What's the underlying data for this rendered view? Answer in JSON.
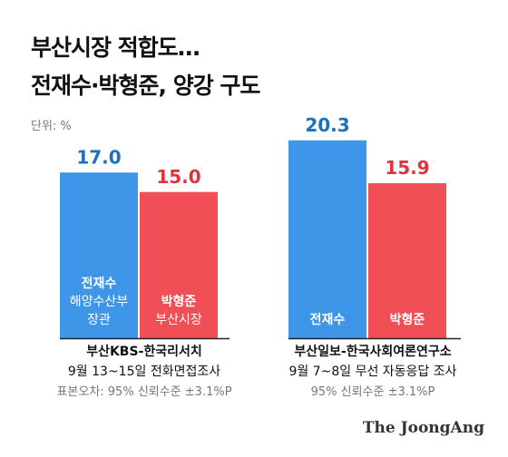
{
  "title": {
    "line1": "부산시장 적합도…",
    "line2": "전재수·박형준, 양강 구도"
  },
  "unit_label": "단위: %",
  "brand": "The JoongAng",
  "colors": {
    "candidate_a": "#3f95e7",
    "candidate_b": "#f04f56",
    "value_a": "#1e6fc0",
    "value_b": "#e0353e",
    "caption": "#111111",
    "caption_muted": "#777777"
  },
  "chart_data": [
    {
      "type": "bar",
      "categories": [
        "전재수",
        "박형준"
      ],
      "values": [
        17.0,
        15.0
      ],
      "value_labels": [
        "17.0",
        "15.0"
      ],
      "bar_labels": [
        [
          "전재수",
          "해양수산부",
          "장관"
        ],
        [
          "박형준",
          "부산시장"
        ]
      ],
      "ylim": [
        0,
        25
      ],
      "caption": [
        "부산KBS-한국리서치",
        "9월 13~15일 전화면접조사",
        "표본오차: 95% 신뢰수준 ±3.1%P"
      ]
    },
    {
      "type": "bar",
      "categories": [
        "전재수",
        "박형준"
      ],
      "values": [
        20.3,
        15.9
      ],
      "value_labels": [
        "20.3",
        "15.9"
      ],
      "bar_labels": [
        [
          "전재수"
        ],
        [
          "박형준"
        ]
      ],
      "ylim": [
        0,
        25
      ],
      "caption": [
        "부산일보-한국사회여론연구소",
        "9월 7~8일 무선 자동응답 조사",
        "95% 신뢰수준 ±3.1%P"
      ]
    }
  ]
}
